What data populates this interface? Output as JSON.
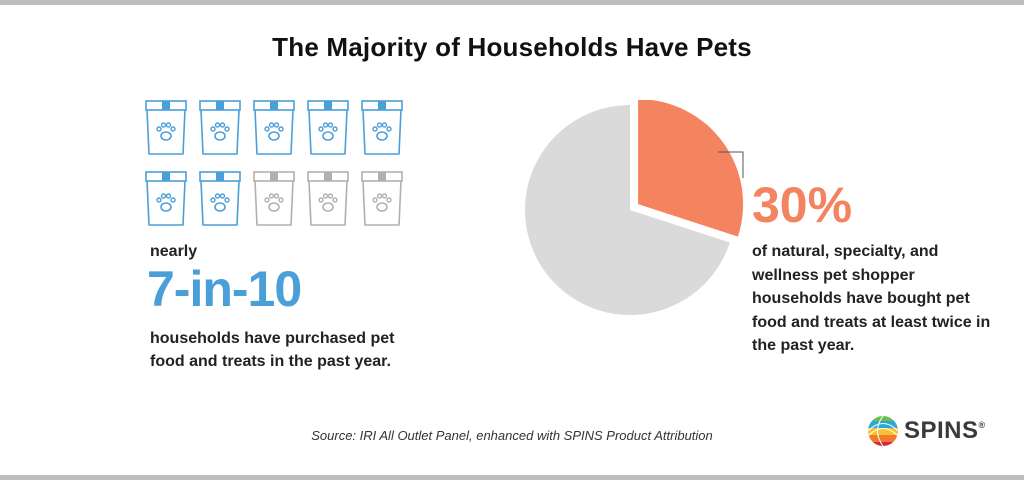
{
  "title": "The Majority of Households Have Pets",
  "left_stat": {
    "prefix": "nearly",
    "value": "7-in-10",
    "description": "households have purchased pet food and treats in the past year.",
    "icon_total": 10,
    "icon_highlighted": 7,
    "icon_name": "pet-food-bag-icon",
    "highlight_color": "#4a9fd9",
    "muted_color": "#b0b0b0"
  },
  "right_stat": {
    "value": "30%",
    "description": "of natural, specialty, and wellness pet shopper households have bought pet food and treats at least twice in the past year.",
    "highlight_color": "#f4845f",
    "rest_color": "#dadada"
  },
  "chart_data": {
    "type": "pie",
    "slices": [
      {
        "value": 30,
        "color": "#f4845f"
      },
      {
        "value": 70,
        "color": "#dadada"
      }
    ]
  },
  "source": "Source: IRI All Outlet Panel, enhanced with SPINS Product Attribution",
  "brand": {
    "name": "SPINS",
    "mark": "®"
  }
}
